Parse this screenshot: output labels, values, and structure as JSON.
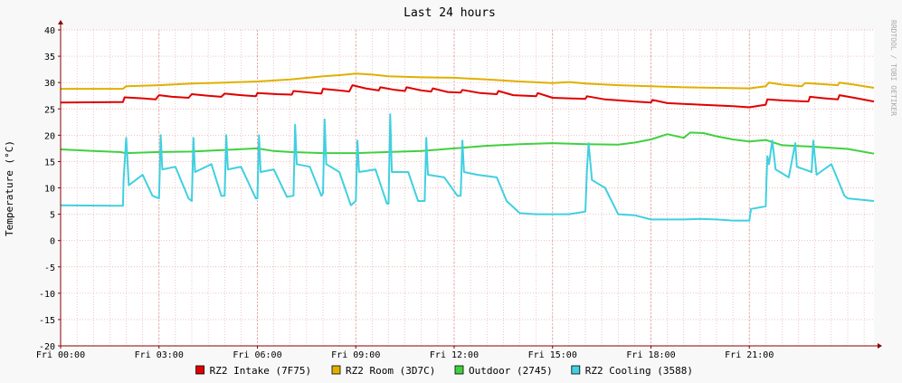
{
  "chart_data": {
    "type": "line",
    "title": "Last 24 hours",
    "xlabel": "",
    "ylabel": "Temperature (°C)",
    "watermark": "RRDTOOL / TOBI OETIKER",
    "ylim": [
      -20,
      40
    ],
    "yticks": [
      40,
      35,
      30,
      25,
      20,
      15,
      10,
      5,
      0,
      -5,
      -10,
      -15,
      -20
    ],
    "xlim": [
      0,
      24.8
    ],
    "xticks": [
      {
        "value": 0,
        "label": "Fri 00:00"
      },
      {
        "value": 3,
        "label": "Fri 03:00"
      },
      {
        "value": 6,
        "label": "Fri 06:00"
      },
      {
        "value": 9,
        "label": "Fri 09:00"
      },
      {
        "value": 12,
        "label": "Fri 12:00"
      },
      {
        "value": 15,
        "label": "Fri 15:00"
      },
      {
        "value": 18,
        "label": "Fri 18:00"
      },
      {
        "value": 21,
        "label": "Fri 21:00"
      }
    ],
    "grid": true,
    "legend_position": "bottom",
    "colors": {
      "background": "#f8f8f8",
      "plot": "#ffffff",
      "grid": "#e5a0a0",
      "axis": "#8b0000",
      "text": "#000000"
    },
    "series": [
      {
        "name": "RZ2 Intake (7F75)",
        "color": "#e00000",
        "points": [
          [
            0,
            26.2
          ],
          [
            1.9,
            26.3
          ],
          [
            1.95,
            27.2
          ],
          [
            2.5,
            27.0
          ],
          [
            2.9,
            26.8
          ],
          [
            3.0,
            27.6
          ],
          [
            3.4,
            27.3
          ],
          [
            3.9,
            27.1
          ],
          [
            4.0,
            27.8
          ],
          [
            4.5,
            27.5
          ],
          [
            4.9,
            27.3
          ],
          [
            5.0,
            27.9
          ],
          [
            5.5,
            27.6
          ],
          [
            5.95,
            27.4
          ],
          [
            6.0,
            28.0
          ],
          [
            6.6,
            27.8
          ],
          [
            7.05,
            27.7
          ],
          [
            7.1,
            28.4
          ],
          [
            7.6,
            28.1
          ],
          [
            7.95,
            27.9
          ],
          [
            8.0,
            28.8
          ],
          [
            8.5,
            28.5
          ],
          [
            8.8,
            28.3
          ],
          [
            8.9,
            29.5
          ],
          [
            9.3,
            28.9
          ],
          [
            9.7,
            28.5
          ],
          [
            9.75,
            29.1
          ],
          [
            10.2,
            28.6
          ],
          [
            10.5,
            28.4
          ],
          [
            10.55,
            29.1
          ],
          [
            11.0,
            28.5
          ],
          [
            11.3,
            28.3
          ],
          [
            11.35,
            28.9
          ],
          [
            11.8,
            28.2
          ],
          [
            12.2,
            28.1
          ],
          [
            12.25,
            28.6
          ],
          [
            12.8,
            28.0
          ],
          [
            13.3,
            27.8
          ],
          [
            13.35,
            28.4
          ],
          [
            13.8,
            27.6
          ],
          [
            14.5,
            27.4
          ],
          [
            14.55,
            28.0
          ],
          [
            15.0,
            27.1
          ],
          [
            16.0,
            26.9
          ],
          [
            16.05,
            27.4
          ],
          [
            16.6,
            26.8
          ],
          [
            17.5,
            26.4
          ],
          [
            18.0,
            26.2
          ],
          [
            18.05,
            26.7
          ],
          [
            18.5,
            26.1
          ],
          [
            19.5,
            25.8
          ],
          [
            20.5,
            25.5
          ],
          [
            21.0,
            25.3
          ],
          [
            21.5,
            25.8
          ],
          [
            21.55,
            26.8
          ],
          [
            22.0,
            26.6
          ],
          [
            22.8,
            26.4
          ],
          [
            22.85,
            27.3
          ],
          [
            23.3,
            27.0
          ],
          [
            23.7,
            26.8
          ],
          [
            23.75,
            27.6
          ],
          [
            24.2,
            27.1
          ],
          [
            24.8,
            26.4
          ]
        ]
      },
      {
        "name": "RZ2 Room (3D7C)",
        "color": "#e0b000",
        "points": [
          [
            0,
            28.8
          ],
          [
            1.9,
            28.8
          ],
          [
            2.0,
            29.3
          ],
          [
            3.0,
            29.5
          ],
          [
            4.0,
            29.8
          ],
          [
            5.0,
            30.0
          ],
          [
            6.0,
            30.2
          ],
          [
            7.0,
            30.6
          ],
          [
            8.0,
            31.2
          ],
          [
            8.5,
            31.4
          ],
          [
            9.0,
            31.7
          ],
          [
            9.5,
            31.5
          ],
          [
            10.0,
            31.2
          ],
          [
            11.0,
            31.0
          ],
          [
            12.0,
            30.9
          ],
          [
            13.0,
            30.6
          ],
          [
            14.0,
            30.2
          ],
          [
            15.0,
            29.9
          ],
          [
            15.5,
            30.1
          ],
          [
            16.0,
            29.8
          ],
          [
            17.0,
            29.5
          ],
          [
            18.0,
            29.3
          ],
          [
            19.0,
            29.1
          ],
          [
            20.0,
            29.0
          ],
          [
            21.0,
            28.9
          ],
          [
            21.5,
            29.3
          ],
          [
            21.6,
            30.0
          ],
          [
            22.0,
            29.6
          ],
          [
            22.6,
            29.3
          ],
          [
            22.7,
            29.9
          ],
          [
            23.2,
            29.7
          ],
          [
            23.7,
            29.5
          ],
          [
            23.75,
            30.0
          ],
          [
            24.2,
            29.6
          ],
          [
            24.8,
            29.0
          ]
        ]
      },
      {
        "name": "Outdoor (2745)",
        "color": "#40d040",
        "points": [
          [
            0,
            17.3
          ],
          [
            1.0,
            17.0
          ],
          [
            1.8,
            16.8
          ],
          [
            2.0,
            16.6
          ],
          [
            3.0,
            16.8
          ],
          [
            4.0,
            16.9
          ],
          [
            5.0,
            17.2
          ],
          [
            6.0,
            17.5
          ],
          [
            6.5,
            17.0
          ],
          [
            7.0,
            16.8
          ],
          [
            8.0,
            16.6
          ],
          [
            9.0,
            16.6
          ],
          [
            10.0,
            16.8
          ],
          [
            11.0,
            17.0
          ],
          [
            12.0,
            17.5
          ],
          [
            13.0,
            18.0
          ],
          [
            14.0,
            18.3
          ],
          [
            15.0,
            18.5
          ],
          [
            16.0,
            18.3
          ],
          [
            17.0,
            18.2
          ],
          [
            17.5,
            18.6
          ],
          [
            18.0,
            19.2
          ],
          [
            18.5,
            20.2
          ],
          [
            19.0,
            19.5
          ],
          [
            19.2,
            20.5
          ],
          [
            19.6,
            20.4
          ],
          [
            20.0,
            19.8
          ],
          [
            20.5,
            19.2
          ],
          [
            21.0,
            18.8
          ],
          [
            21.5,
            19.1
          ],
          [
            22.0,
            18.1
          ],
          [
            23.0,
            17.8
          ],
          [
            24.0,
            17.4
          ],
          [
            24.8,
            16.5
          ]
        ]
      },
      {
        "name": "RZ2 Cooling (3588)",
        "color": "#40d0e0",
        "points": [
          [
            0,
            6.7
          ],
          [
            1.9,
            6.6
          ],
          [
            1.92,
            11.5
          ],
          [
            2.0,
            19.5
          ],
          [
            2.08,
            10.5
          ],
          [
            2.5,
            12.5
          ],
          [
            2.8,
            8.5
          ],
          [
            3.0,
            8.0
          ],
          [
            3.05,
            20.0
          ],
          [
            3.1,
            13.5
          ],
          [
            3.5,
            14.0
          ],
          [
            3.9,
            8.0
          ],
          [
            4.0,
            7.5
          ],
          [
            4.05,
            19.5
          ],
          [
            4.1,
            13.0
          ],
          [
            4.6,
            14.5
          ],
          [
            4.9,
            8.5
          ],
          [
            5.0,
            8.5
          ],
          [
            5.05,
            20.0
          ],
          [
            5.1,
            13.5
          ],
          [
            5.5,
            14.0
          ],
          [
            5.95,
            8.0
          ],
          [
            6.0,
            8.0
          ],
          [
            6.05,
            20.0
          ],
          [
            6.1,
            13.0
          ],
          [
            6.5,
            13.5
          ],
          [
            6.9,
            8.3
          ],
          [
            7.1,
            8.5
          ],
          [
            7.15,
            22.0
          ],
          [
            7.2,
            14.5
          ],
          [
            7.6,
            14.0
          ],
          [
            7.95,
            8.5
          ],
          [
            8.0,
            9.0
          ],
          [
            8.05,
            23.0
          ],
          [
            8.1,
            14.5
          ],
          [
            8.5,
            13.0
          ],
          [
            8.85,
            6.7
          ],
          [
            9.0,
            7.5
          ],
          [
            9.05,
            19.0
          ],
          [
            9.1,
            13.0
          ],
          [
            9.6,
            13.5
          ],
          [
            9.95,
            7.0
          ],
          [
            10.0,
            7.0
          ],
          [
            10.05,
            24.0
          ],
          [
            10.1,
            13.0
          ],
          [
            10.6,
            13.0
          ],
          [
            10.9,
            7.5
          ],
          [
            11.1,
            7.5
          ],
          [
            11.15,
            19.5
          ],
          [
            11.2,
            12.5
          ],
          [
            11.7,
            12.0
          ],
          [
            12.1,
            8.5
          ],
          [
            12.2,
            8.5
          ],
          [
            12.25,
            19.0
          ],
          [
            12.3,
            13.0
          ],
          [
            12.7,
            12.5
          ],
          [
            13.3,
            12.0
          ],
          [
            13.6,
            7.5
          ],
          [
            14.0,
            5.2
          ],
          [
            14.5,
            5.0
          ],
          [
            15.0,
            5.0
          ],
          [
            15.5,
            5.0
          ],
          [
            16.0,
            5.5
          ],
          [
            16.05,
            13.5
          ],
          [
            16.1,
            18.5
          ],
          [
            16.2,
            11.5
          ],
          [
            16.6,
            10.0
          ],
          [
            17.0,
            5.0
          ],
          [
            17.5,
            4.8
          ],
          [
            18.0,
            4.0
          ],
          [
            18.5,
            4.0
          ],
          [
            19.0,
            4.0
          ],
          [
            19.5,
            4.1
          ],
          [
            20.0,
            4.0
          ],
          [
            20.5,
            3.8
          ],
          [
            21.0,
            3.8
          ],
          [
            21.05,
            6.0
          ],
          [
            21.5,
            6.5
          ],
          [
            21.52,
            11.0
          ],
          [
            21.55,
            16.0
          ],
          [
            21.6,
            14.5
          ],
          [
            21.7,
            19.0
          ],
          [
            21.8,
            13.5
          ],
          [
            22.2,
            12.0
          ],
          [
            22.4,
            18.5
          ],
          [
            22.45,
            14.0
          ],
          [
            22.9,
            13.0
          ],
          [
            22.95,
            19.0
          ],
          [
            23.05,
            12.5
          ],
          [
            23.5,
            14.5
          ],
          [
            23.9,
            8.5
          ],
          [
            24.0,
            8.0
          ],
          [
            24.8,
            7.5
          ]
        ],
        "gaps": [
          [
            21.0,
            21.5
          ]
        ]
      }
    ]
  }
}
